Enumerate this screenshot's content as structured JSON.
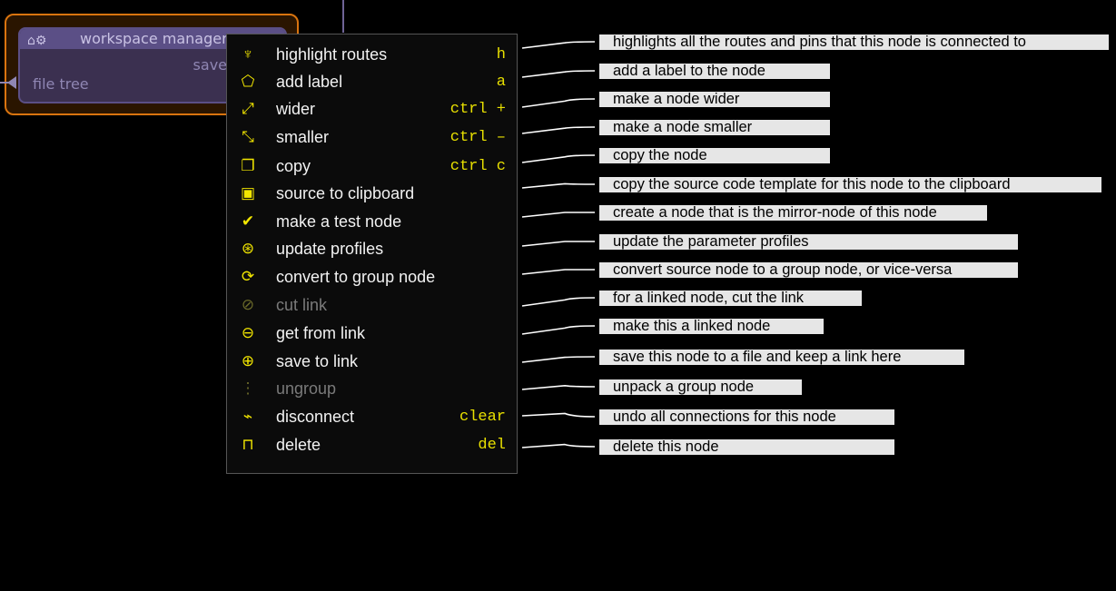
{
  "node": {
    "title": "workspace manager",
    "output_pin": "save",
    "input_pin": "file tree",
    "icons": [
      "factory-icon",
      "gear-icon"
    ]
  },
  "menu": [
    {
      "label": "highlight routes",
      "shortcut": "h",
      "icon": "flashlight-icon",
      "glyph": "♆",
      "enabled": true,
      "note": "highlights all the routes and pins that this node is connected to"
    },
    {
      "label": "add label",
      "shortcut": "a",
      "icon": "tag-icon",
      "glyph": "⬠",
      "enabled": true,
      "note": "add a label to the node"
    },
    {
      "label": "wider",
      "shortcut": "ctrl +",
      "icon": "expand-arrows-icon",
      "glyph": "⤢",
      "enabled": true,
      "note": "make a node wider"
    },
    {
      "label": "smaller",
      "shortcut": "ctrl –",
      "icon": "compress-arrows-icon",
      "glyph": "⤡",
      "enabled": true,
      "note": "make a node smaller"
    },
    {
      "label": "copy",
      "shortcut": "ctrl c",
      "icon": "copy-icon",
      "glyph": "❐",
      "enabled": true,
      "note": "copy the node"
    },
    {
      "label": "source to clipboard",
      "shortcut": "",
      "icon": "clipboard-icon",
      "glyph": "▣",
      "enabled": true,
      "note": "copy the source code template for this node to the clipboard"
    },
    {
      "label": "make a test node",
      "shortcut": "",
      "icon": "double-check-icon",
      "glyph": "✔",
      "enabled": true,
      "note": "create a node that is the mirror-node of this node"
    },
    {
      "label": "update profiles",
      "shortcut": "",
      "icon": "search-refresh-icon",
      "glyph": "⊛",
      "enabled": true,
      "note": "update the parameter profiles"
    },
    {
      "label": "convert to group node",
      "shortcut": "",
      "icon": "sync-icon",
      "glyph": "⟳",
      "enabled": true,
      "note": "convert source node to a group node, or vice-versa"
    },
    {
      "label": "cut link",
      "shortcut": "",
      "icon": "unlink-icon",
      "glyph": "⊘",
      "enabled": false,
      "note": "for a linked node, cut the link"
    },
    {
      "label": "get from link",
      "shortcut": "",
      "icon": "link-icon",
      "glyph": "⊖",
      "enabled": true,
      "note": "make this a linked node"
    },
    {
      "label": "save to link",
      "shortcut": "",
      "icon": "link-add-icon",
      "glyph": "⊕",
      "enabled": true,
      "note": "save this node to a file and keep a link here"
    },
    {
      "label": "ungroup",
      "shortcut": "",
      "icon": "ungroup-icon",
      "glyph": "⋮",
      "enabled": false,
      "note": "unpack a group node"
    },
    {
      "label": "disconnect",
      "shortcut": "clear",
      "icon": "plug-off-icon",
      "glyph": "⌁",
      "enabled": true,
      "note": "undo all connections for this node"
    },
    {
      "label": "delete",
      "shortcut": "del",
      "icon": "trash-icon",
      "glyph": "⊓",
      "enabled": true,
      "note": "delete this node"
    }
  ]
}
